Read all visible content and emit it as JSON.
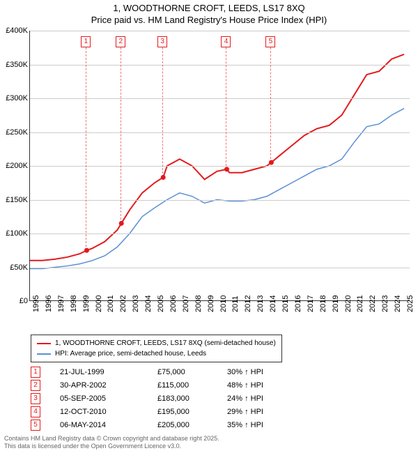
{
  "title_line1": "1, WOODTHORNE CROFT, LEEDS, LS17 8XQ",
  "title_line2": "Price paid vs. HM Land Registry's House Price Index (HPI)",
  "chart": {
    "type": "line",
    "x_min": 1995,
    "x_max": 2025.5,
    "y_min": 0,
    "y_max": 400000,
    "y_ticks": [
      0,
      50000,
      100000,
      150000,
      200000,
      250000,
      300000,
      350000,
      400000
    ],
    "y_tick_labels": [
      "£0",
      "£50K",
      "£100K",
      "£150K",
      "£200K",
      "£250K",
      "£300K",
      "£350K",
      "£400K"
    ],
    "x_ticks": [
      1995,
      1996,
      1997,
      1998,
      1999,
      2000,
      2001,
      2002,
      2003,
      2004,
      2005,
      2006,
      2007,
      2008,
      2009,
      2010,
      2011,
      2012,
      2013,
      2014,
      2015,
      2016,
      2017,
      2018,
      2019,
      2020,
      2021,
      2022,
      2023,
      2024,
      2025
    ],
    "grid_color": "#cccccc",
    "series": [
      {
        "name": "1, WOODTHORNE CROFT, LEEDS, LS17 8XQ (semi-detached house)",
        "color": "#e31a1c",
        "width": 2,
        "data": [
          [
            1995,
            60000
          ],
          [
            1996,
            60000
          ],
          [
            1997,
            62000
          ],
          [
            1998,
            65000
          ],
          [
            1999,
            70000
          ],
          [
            1999.55,
            75000
          ],
          [
            2000,
            78000
          ],
          [
            2001,
            88000
          ],
          [
            2002,
            105000
          ],
          [
            2002.33,
            115000
          ],
          [
            2003,
            135000
          ],
          [
            2004,
            160000
          ],
          [
            2005,
            175000
          ],
          [
            2005.68,
            183000
          ],
          [
            2006,
            200000
          ],
          [
            2007,
            210000
          ],
          [
            2008,
            200000
          ],
          [
            2009,
            180000
          ],
          [
            2010,
            192000
          ],
          [
            2010.78,
            195000
          ],
          [
            2011,
            190000
          ],
          [
            2012,
            190000
          ],
          [
            2013,
            195000
          ],
          [
            2014,
            200000
          ],
          [
            2014.35,
            205000
          ],
          [
            2015,
            215000
          ],
          [
            2016,
            230000
          ],
          [
            2017,
            245000
          ],
          [
            2018,
            255000
          ],
          [
            2019,
            260000
          ],
          [
            2020,
            275000
          ],
          [
            2021,
            305000
          ],
          [
            2022,
            335000
          ],
          [
            2023,
            340000
          ],
          [
            2024,
            358000
          ],
          [
            2025,
            365000
          ]
        ]
      },
      {
        "name": "HPI: Average price, semi-detached house, Leeds",
        "color": "#5b8fd6",
        "width": 1.5,
        "data": [
          [
            1995,
            48000
          ],
          [
            1996,
            48000
          ],
          [
            1997,
            50000
          ],
          [
            1998,
            52000
          ],
          [
            1999,
            55000
          ],
          [
            2000,
            60000
          ],
          [
            2001,
            67000
          ],
          [
            2002,
            80000
          ],
          [
            2003,
            100000
          ],
          [
            2004,
            125000
          ],
          [
            2005,
            138000
          ],
          [
            2006,
            150000
          ],
          [
            2007,
            160000
          ],
          [
            2008,
            155000
          ],
          [
            2009,
            145000
          ],
          [
            2010,
            150000
          ],
          [
            2011,
            148000
          ],
          [
            2012,
            148000
          ],
          [
            2013,
            150000
          ],
          [
            2014,
            155000
          ],
          [
            2015,
            165000
          ],
          [
            2016,
            175000
          ],
          [
            2017,
            185000
          ],
          [
            2018,
            195000
          ],
          [
            2019,
            200000
          ],
          [
            2020,
            210000
          ],
          [
            2021,
            235000
          ],
          [
            2022,
            258000
          ],
          [
            2023,
            262000
          ],
          [
            2024,
            275000
          ],
          [
            2025,
            285000
          ]
        ]
      }
    ],
    "markers": [
      {
        "n": "1",
        "x": 1999.55,
        "y": 75000
      },
      {
        "n": "2",
        "x": 2002.33,
        "y": 115000
      },
      {
        "n": "3",
        "x": 2005.68,
        "y": 183000
      },
      {
        "n": "4",
        "x": 2010.78,
        "y": 195000
      },
      {
        "n": "5",
        "x": 2014.35,
        "y": 205000
      }
    ]
  },
  "legend": [
    {
      "color": "#e31a1c",
      "label": "1, WOODTHORNE CROFT, LEEDS, LS17 8XQ (semi-detached house)"
    },
    {
      "color": "#5b8fd6",
      "label": "HPI: Average price, semi-detached house, Leeds"
    }
  ],
  "table": [
    {
      "n": "1",
      "date": "21-JUL-1999",
      "price": "£75,000",
      "hpi": "30% ↑ HPI"
    },
    {
      "n": "2",
      "date": "30-APR-2002",
      "price": "£115,000",
      "hpi": "48% ↑ HPI"
    },
    {
      "n": "3",
      "date": "05-SEP-2005",
      "price": "£183,000",
      "hpi": "24% ↑ HPI"
    },
    {
      "n": "4",
      "date": "12-OCT-2010",
      "price": "£195,000",
      "hpi": "29% ↑ HPI"
    },
    {
      "n": "5",
      "date": "06-MAY-2014",
      "price": "£205,000",
      "hpi": "35% ↑ HPI"
    }
  ],
  "footer_line1": "Contains HM Land Registry data © Crown copyright and database right 2025.",
  "footer_line2": "This data is licensed under the Open Government Licence v3.0."
}
